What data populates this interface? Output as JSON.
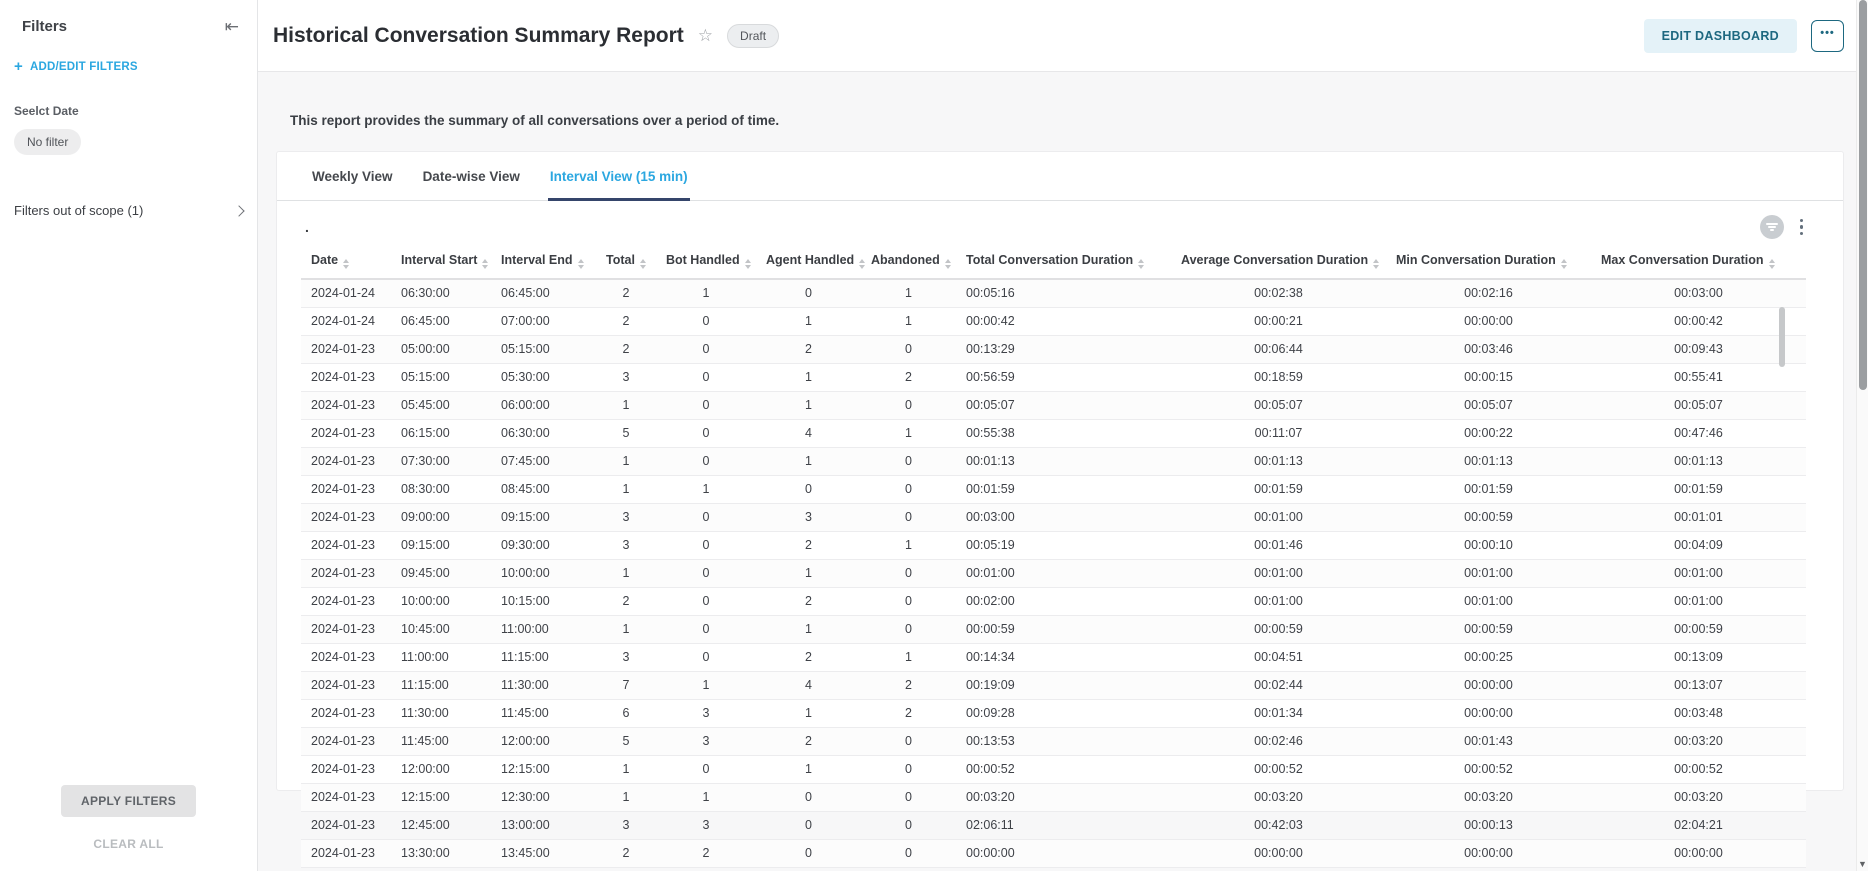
{
  "sidebar": {
    "title": "Filters",
    "add_edit_label": "ADD/EDIT FILTERS",
    "select_date_label": "Seelct Date",
    "no_filter_chip": "No filter",
    "out_of_scope_label": "Filters out of scope (1)",
    "apply_button": "APPLY FILTERS",
    "clear_all": "CLEAR ALL"
  },
  "header": {
    "title": "Historical Conversation Summary Report",
    "status_badge": "Draft",
    "edit_button": "EDIT DASHBOARD",
    "more_button": "•••"
  },
  "report": {
    "description": "This report provides the summary of all conversations over a period of time."
  },
  "tabs": {
    "items": [
      {
        "label": "Weekly View",
        "active": false
      },
      {
        "label": "Date-wise View",
        "active": false
      },
      {
        "label": "Interval View (15 min)",
        "active": true
      }
    ]
  },
  "table": {
    "title": ".",
    "columns": [
      "Date",
      "Interval Start",
      "Interval End",
      "Total",
      "Bot Handled",
      "Agent Handled",
      "Abandoned",
      "Total Conversation Duration",
      "Average Conversation Duration",
      "Min Conversation Duration",
      "Max Conversation Duration"
    ],
    "rows": [
      [
        "2024-01-24",
        "06:30:00",
        "06:45:00",
        "2",
        "1",
        "0",
        "1",
        "00:05:16",
        "00:02:38",
        "00:02:16",
        "00:03:00"
      ],
      [
        "2024-01-24",
        "06:45:00",
        "07:00:00",
        "2",
        "0",
        "1",
        "1",
        "00:00:42",
        "00:00:21",
        "00:00:00",
        "00:00:42"
      ],
      [
        "2024-01-23",
        "05:00:00",
        "05:15:00",
        "2",
        "0",
        "2",
        "0",
        "00:13:29",
        "00:06:44",
        "00:03:46",
        "00:09:43"
      ],
      [
        "2024-01-23",
        "05:15:00",
        "05:30:00",
        "3",
        "0",
        "1",
        "2",
        "00:56:59",
        "00:18:59",
        "00:00:15",
        "00:55:41"
      ],
      [
        "2024-01-23",
        "05:45:00",
        "06:00:00",
        "1",
        "0",
        "1",
        "0",
        "00:05:07",
        "00:05:07",
        "00:05:07",
        "00:05:07"
      ],
      [
        "2024-01-23",
        "06:15:00",
        "06:30:00",
        "5",
        "0",
        "4",
        "1",
        "00:55:38",
        "00:11:07",
        "00:00:22",
        "00:47:46"
      ],
      [
        "2024-01-23",
        "07:30:00",
        "07:45:00",
        "1",
        "0",
        "1",
        "0",
        "00:01:13",
        "00:01:13",
        "00:01:13",
        "00:01:13"
      ],
      [
        "2024-01-23",
        "08:30:00",
        "08:45:00",
        "1",
        "1",
        "0",
        "0",
        "00:01:59",
        "00:01:59",
        "00:01:59",
        "00:01:59"
      ],
      [
        "2024-01-23",
        "09:00:00",
        "09:15:00",
        "3",
        "0",
        "3",
        "0",
        "00:03:00",
        "00:01:00",
        "00:00:59",
        "00:01:01"
      ],
      [
        "2024-01-23",
        "09:15:00",
        "09:30:00",
        "3",
        "0",
        "2",
        "1",
        "00:05:19",
        "00:01:46",
        "00:00:10",
        "00:04:09"
      ],
      [
        "2024-01-23",
        "09:45:00",
        "10:00:00",
        "1",
        "0",
        "1",
        "0",
        "00:01:00",
        "00:01:00",
        "00:01:00",
        "00:01:00"
      ],
      [
        "2024-01-23",
        "10:00:00",
        "10:15:00",
        "2",
        "0",
        "2",
        "0",
        "00:02:00",
        "00:01:00",
        "00:01:00",
        "00:01:00"
      ],
      [
        "2024-01-23",
        "10:45:00",
        "11:00:00",
        "1",
        "0",
        "1",
        "0",
        "00:00:59",
        "00:00:59",
        "00:00:59",
        "00:00:59"
      ],
      [
        "2024-01-23",
        "11:00:00",
        "11:15:00",
        "3",
        "0",
        "2",
        "1",
        "00:14:34",
        "00:04:51",
        "00:00:25",
        "00:13:09"
      ],
      [
        "2024-01-23",
        "11:15:00",
        "11:30:00",
        "7",
        "1",
        "4",
        "2",
        "00:19:09",
        "00:02:44",
        "00:00:00",
        "00:13:07"
      ],
      [
        "2024-01-23",
        "11:30:00",
        "11:45:00",
        "6",
        "3",
        "1",
        "2",
        "00:09:28",
        "00:01:34",
        "00:00:00",
        "00:03:48"
      ],
      [
        "2024-01-23",
        "11:45:00",
        "12:00:00",
        "5",
        "3",
        "2",
        "0",
        "00:13:53",
        "00:02:46",
        "00:01:43",
        "00:03:20"
      ],
      [
        "2024-01-23",
        "12:00:00",
        "12:15:00",
        "1",
        "0",
        "1",
        "0",
        "00:00:52",
        "00:00:52",
        "00:00:52",
        "00:00:52"
      ],
      [
        "2024-01-23",
        "12:15:00",
        "12:30:00",
        "1",
        "1",
        "0",
        "0",
        "00:03:20",
        "00:03:20",
        "00:03:20",
        "00:03:20"
      ],
      [
        "2024-01-23",
        "12:45:00",
        "13:00:00",
        "3",
        "3",
        "0",
        "0",
        "02:06:11",
        "00:42:03",
        "00:00:13",
        "02:04:21"
      ],
      [
        "2024-01-23",
        "13:30:00",
        "13:45:00",
        "2",
        "2",
        "0",
        "0",
        "00:00:00",
        "00:00:00",
        "00:00:00",
        "00:00:00"
      ]
    ]
  },
  "colors": {
    "accent_blue": "#2ba7e0",
    "teal": "#1d6880",
    "tab_underline": "#35456b"
  }
}
